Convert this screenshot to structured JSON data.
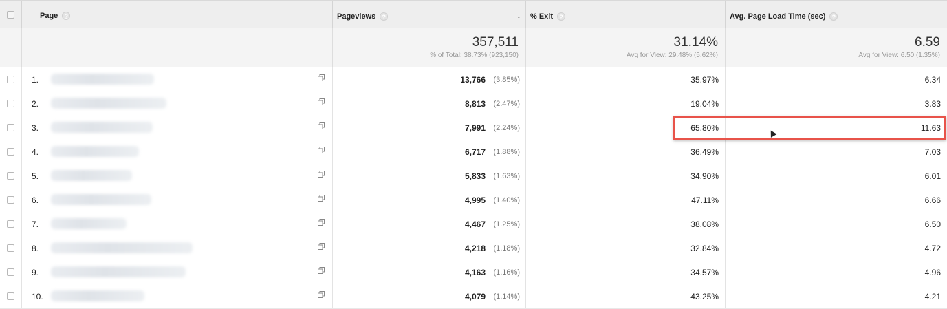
{
  "header": {
    "page_label": "Page",
    "pageviews_label": "Pageviews",
    "exit_label": "% Exit",
    "load_label": "Avg. Page Load Time (sec)",
    "help_glyph": "?",
    "sort_glyph": "↓"
  },
  "summary": {
    "pageviews": "357,511",
    "pageviews_sub": "% of Total: 38.73% (923,150)",
    "exit": "31.14%",
    "exit_sub": "Avg for View: 29.48% (5.62%)",
    "load": "6.59",
    "load_sub": "Avg for View: 6.50 (1.35%)"
  },
  "rows": [
    {
      "rank": "1.",
      "pageviews": "13,766",
      "pv_pct": "(3.85%)",
      "exit": "35.97%",
      "load": "6.34"
    },
    {
      "rank": "2.",
      "pageviews": "8,813",
      "pv_pct": "(2.47%)",
      "exit": "19.04%",
      "load": "3.83"
    },
    {
      "rank": "3.",
      "pageviews": "7,991",
      "pv_pct": "(2.24%)",
      "exit": "65.80%",
      "load": "11.63"
    },
    {
      "rank": "4.",
      "pageviews": "6,717",
      "pv_pct": "(1.88%)",
      "exit": "36.49%",
      "load": "7.03"
    },
    {
      "rank": "5.",
      "pageviews": "5,833",
      "pv_pct": "(1.63%)",
      "exit": "34.90%",
      "load": "6.01"
    },
    {
      "rank": "6.",
      "pageviews": "4,995",
      "pv_pct": "(1.40%)",
      "exit": "47.11%",
      "load": "6.66"
    },
    {
      "rank": "7.",
      "pageviews": "4,467",
      "pv_pct": "(1.25%)",
      "exit": "38.08%",
      "load": "6.50"
    },
    {
      "rank": "8.",
      "pageviews": "4,218",
      "pv_pct": "(1.18%)",
      "exit": "32.84%",
      "load": "4.72"
    },
    {
      "rank": "9.",
      "pageviews": "4,163",
      "pv_pct": "(1.16%)",
      "exit": "34.57%",
      "load": "4.96"
    },
    {
      "rank": "10.",
      "pageviews": "4,079",
      "pv_pct": "(1.14%)",
      "exit": "43.25%",
      "load": "4.21"
    }
  ],
  "colors": {
    "highlight": "#e8534a",
    "header_bg": "#eeeeee"
  },
  "icons": {
    "row_action": "open-in-new-window-icon",
    "help": "help-icon",
    "sort": "sort-descending-icon"
  }
}
